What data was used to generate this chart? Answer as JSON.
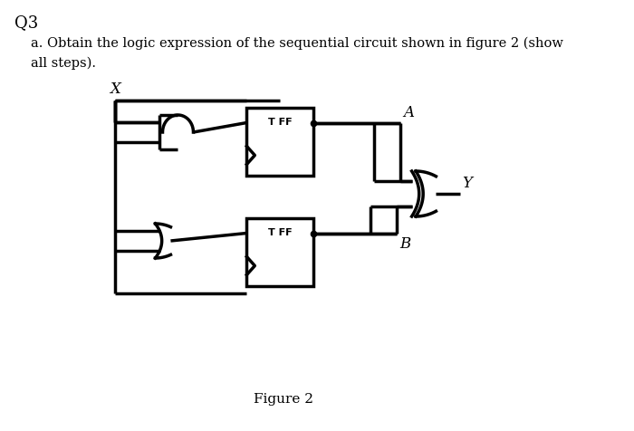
{
  "title": "Q3",
  "subtitle_line1": "a. Obtain the logic expression of the sequential circuit shown in figure 2 (show",
  "subtitle_line2": "all steps).",
  "figure_label": "Figure 2",
  "background_color": "#ffffff",
  "line_color": "#000000",
  "text_color": "#000000",
  "lw": 2.5,
  "font_size_title": 13,
  "font_size_body": 10.5,
  "font_size_fig": 11,
  "font_size_label": 12,
  "font_size_tff": 8
}
